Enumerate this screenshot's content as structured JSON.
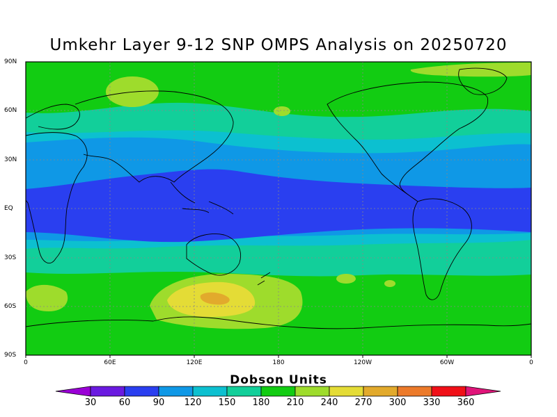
{
  "title": "Umkehr Layer 9-12 SNP OMPS Analysis on 20250720",
  "lat_labels": [
    "90N",
    "60N",
    "30N",
    "EQ",
    "30S",
    "60S",
    "90S"
  ],
  "lon_labels": [
    "0",
    "60E",
    "120E",
    "180",
    "120W",
    "60W",
    "0"
  ],
  "colorbar": {
    "title": "Dobson Units",
    "labels": [
      "30",
      "60",
      "90",
      "120",
      "150",
      "180",
      "210",
      "240",
      "270",
      "300",
      "330",
      "360"
    ],
    "colors": [
      "#9a00d6",
      "#6a1ae0",
      "#2a3ff0",
      "#0f98e6",
      "#0cc0d0",
      "#12cf9a",
      "#12cc12",
      "#9edc2c",
      "#e4dc36",
      "#e2aa2c",
      "#ec7a2a",
      "#f01018",
      "#e0157a"
    ]
  },
  "colors": {
    "band_210": "#12cc12",
    "band_180": "#12cf9a",
    "band_150": "#0cc0d0",
    "band_120": "#0f98e6",
    "band_90": "#2a3ff0",
    "band_240": "#9edc2c",
    "band_270": "#e4dc36",
    "band_300": "#e2aa2c"
  }
}
